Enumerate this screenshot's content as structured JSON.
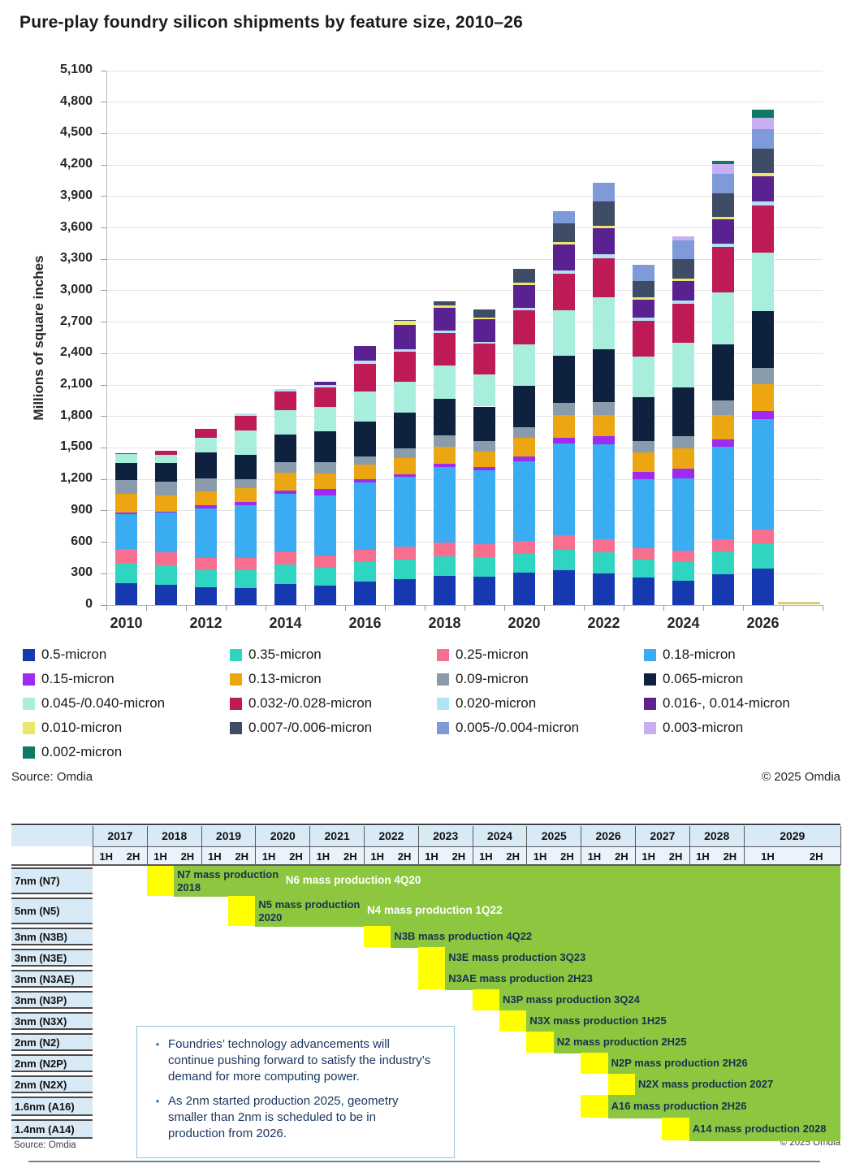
{
  "page": {
    "title": "Pure-play foundry silicon shipments by feature size, 2010–26",
    "chart_source": "Source: Omdia",
    "chart_copyright": "© 2025 Omdia",
    "table_source": "Source: Omdia",
    "table_copyright": "© 2025 Omdia"
  },
  "chart_data": {
    "type": "bar",
    "stacked": true,
    "title": "Pure-play foundry silicon shipments by feature size, 2010–26",
    "xlabel": "",
    "ylabel": "Millions of square inches",
    "ylim": [
      0,
      5100
    ],
    "ytick_step": 300,
    "grid": true,
    "legend_position": "bottom",
    "categories": [
      "2010",
      "2011",
      "2012",
      "2013",
      "2014",
      "2015",
      "2016",
      "2017",
      "2018",
      "2019",
      "2020",
      "2021",
      "2022",
      "2023",
      "2024",
      "2025",
      "2026"
    ],
    "xtick_labels_shown": [
      "2010",
      "2012",
      "2014",
      "2016",
      "2018",
      "2020",
      "2022",
      "2024",
      "2026"
    ],
    "series": [
      {
        "name": "0.5-micron",
        "color": "#1639b2",
        "values": [
          210,
          195,
          170,
          160,
          200,
          185,
          225,
          245,
          280,
          275,
          310,
          330,
          300,
          260,
          235,
          295,
          350
        ]
      },
      {
        "name": "0.35-micron",
        "color": "#2fd5c0",
        "values": [
          195,
          185,
          165,
          175,
          185,
          175,
          185,
          190,
          185,
          180,
          175,
          195,
          200,
          175,
          185,
          215,
          240
        ]
      },
      {
        "name": "0.25-micron",
        "color": "#f76e8e",
        "values": [
          130,
          120,
          115,
          115,
          125,
          115,
          120,
          120,
          135,
          130,
          130,
          145,
          130,
          105,
          100,
          115,
          130
        ]
      },
      {
        "name": "0.18-micron",
        "color": "#39acf2",
        "values": [
          335,
          380,
          470,
          500,
          555,
          575,
          640,
          670,
          720,
          700,
          755,
          870,
          905,
          660,
          690,
          885,
          1055
        ]
      },
      {
        "name": "0.15-micron",
        "color": "#9e2bef",
        "values": [
          15,
          15,
          35,
          35,
          30,
          55,
          30,
          25,
          30,
          30,
          45,
          60,
          75,
          70,
          90,
          75,
          80
        ]
      },
      {
        "name": "0.13-micron",
        "color": "#eba612",
        "values": [
          175,
          150,
          130,
          130,
          165,
          150,
          140,
          150,
          160,
          150,
          180,
          210,
          205,
          185,
          195,
          230,
          255
        ]
      },
      {
        "name": "0.09-micron",
        "color": "#8a9bac",
        "values": [
          130,
          130,
          125,
          90,
          105,
          110,
          80,
          95,
          110,
          100,
          105,
          120,
          120,
          110,
          115,
          135,
          150
        ]
      },
      {
        "name": "0.065-micron",
        "color": "#0e2240",
        "values": [
          170,
          185,
          250,
          230,
          260,
          290,
          330,
          340,
          350,
          330,
          390,
          450,
          505,
          420,
          465,
          535,
          545
        ]
      },
      {
        "name": "0.045-/0.040-micron",
        "color": "#a9eedc",
        "values": [
          80,
          75,
          135,
          230,
          235,
          235,
          285,
          300,
          320,
          310,
          395,
          430,
          500,
          385,
          430,
          500,
          555
        ]
      },
      {
        "name": "0.032-/0.028-micron",
        "color": "#be1b56",
        "values": [
          10,
          35,
          85,
          140,
          175,
          185,
          270,
          280,
          305,
          290,
          330,
          355,
          370,
          345,
          370,
          430,
          450
        ]
      },
      {
        "name": "0.020-micron",
        "color": "#b3e2f7",
        "values": [
          0,
          0,
          0,
          25,
          25,
          25,
          30,
          30,
          25,
          20,
          25,
          30,
          35,
          30,
          35,
          35,
          40
        ]
      },
      {
        "name": "0.016-, 0.014-micron",
        "color": "#5a2191",
        "values": [
          0,
          0,
          0,
          0,
          0,
          30,
          135,
          230,
          215,
          210,
          215,
          245,
          250,
          170,
          185,
          230,
          245
        ]
      },
      {
        "name": "0.010-micron",
        "color": "#eae66e",
        "values": [
          0,
          0,
          0,
          0,
          0,
          0,
          0,
          35,
          25,
          20,
          20,
          25,
          25,
          20,
          20,
          25,
          25
        ]
      },
      {
        "name": "0.007-/0.006-micron",
        "color": "#3e4c66",
        "values": [
          0,
          0,
          0,
          0,
          0,
          0,
          0,
          10,
          40,
          75,
          135,
          180,
          230,
          155,
          190,
          225,
          235
        ]
      },
      {
        "name": "0.005-/0.004-micron",
        "color": "#7e9ad9",
        "values": [
          0,
          0,
          0,
          0,
          0,
          0,
          0,
          0,
          0,
          0,
          0,
          115,
          180,
          160,
          175,
          185,
          185
        ]
      },
      {
        "name": "0.003-micron",
        "color": "#c8aff2",
        "values": [
          0,
          0,
          0,
          0,
          0,
          0,
          0,
          0,
          0,
          0,
          0,
          0,
          0,
          0,
          40,
          90,
          110
        ]
      },
      {
        "name": "0.002-micron",
        "color": "#0d7a64",
        "values": [
          0,
          0,
          0,
          0,
          0,
          0,
          0,
          0,
          0,
          0,
          0,
          0,
          0,
          0,
          0,
          35,
          80
        ]
      }
    ],
    "partial_sliver_after_2026": {
      "color": "#d3c35c",
      "note": "thin unlabeled sliver at baseline right of 2026"
    }
  },
  "timeline": {
    "years": [
      "2017",
      "2018",
      "2019",
      "2020",
      "2021",
      "2022",
      "2023",
      "2024",
      "2025",
      "2026",
      "2027",
      "2028",
      "2029"
    ],
    "half_labels": [
      "1H",
      "2H"
    ],
    "green": "#8dc63f",
    "yellow": "#ffff00",
    "rows": [
      {
        "label": "7nm (N7)",
        "yellow_h": 2,
        "yellow_rowspan": 1,
        "green_start_h": 3,
        "notes": [
          {
            "text": "N7 mass production 2018",
            "h": 3,
            "style": "dark",
            "wrap_width": 140
          },
          {
            "text": "N6 mass production 4Q20",
            "h": 7,
            "style": "white"
          }
        ]
      },
      {
        "label": "5nm (N5)",
        "yellow_h": 5,
        "yellow_rowspan": 1,
        "green_start_h": 6,
        "notes": [
          {
            "text": "N5 mass production 2020",
            "h": 6,
            "style": "dark",
            "wrap_width": 140
          },
          {
            "text": "N4 mass production 1Q22",
            "h": 10,
            "style": "white"
          }
        ]
      },
      {
        "label": "3nm (N3B)",
        "yellow_h": 10,
        "yellow_rowspan": 1,
        "green_start_h": 11,
        "notes": [
          {
            "text": "N3B mass production 4Q22",
            "h": 11,
            "style": "dark"
          }
        ]
      },
      {
        "label": "3nm (N3E)",
        "yellow_h": 12,
        "yellow_rowspan": 2,
        "green_start_h": 13,
        "notes": [
          {
            "text": "N3E mass production 3Q23",
            "h": 13,
            "style": "dark"
          }
        ]
      },
      {
        "label": "3nm (N3AE)",
        "yellow_h": null,
        "yellow_rowspan": 0,
        "green_start_h": 13,
        "notes": [
          {
            "text": "N3AE mass production 2H23",
            "h": 13,
            "style": "dark"
          }
        ]
      },
      {
        "label": "3nm (N3P)",
        "yellow_h": 14,
        "yellow_rowspan": 1,
        "green_start_h": 15,
        "notes": [
          {
            "text": "N3P mass production 3Q24",
            "h": 15,
            "style": "dark"
          }
        ]
      },
      {
        "label": "3nm (N3X)",
        "yellow_h": 15,
        "yellow_rowspan": 1,
        "green_start_h": 16,
        "notes": [
          {
            "text": "N3X mass production 1H25",
            "h": 16,
            "style": "dark"
          }
        ]
      },
      {
        "label": "2nm (N2)",
        "yellow_h": 16,
        "yellow_rowspan": 1,
        "green_start_h": 17,
        "notes": [
          {
            "text": "N2 mass production 2H25",
            "h": 17,
            "style": "dark"
          }
        ]
      },
      {
        "label": "2nm (N2P)",
        "yellow_h": 18,
        "yellow_rowspan": 1,
        "green_start_h": 19,
        "notes": [
          {
            "text": "N2P mass production 2H26",
            "h": 19,
            "style": "dark"
          }
        ]
      },
      {
        "label": "2nm (N2X)",
        "yellow_h": 19,
        "yellow_rowspan": 1,
        "green_start_h": 20,
        "notes": [
          {
            "text": "N2X mass production 2027",
            "h": 20,
            "style": "dark"
          }
        ]
      },
      {
        "label": "1.6nm (A16)",
        "yellow_h": 18,
        "yellow_rowspan": 1,
        "green_start_h": 19,
        "notes": [
          {
            "text": "A16 mass production 2H26",
            "h": 19,
            "style": "dark"
          }
        ]
      },
      {
        "label": "1.4nm (A14)",
        "yellow_h": 21,
        "yellow_rowspan": 1,
        "green_start_h": 22,
        "notes": [
          {
            "text": "A14 mass production 2028",
            "h": 22,
            "style": "dark"
          }
        ]
      }
    ],
    "callout": {
      "bullets": [
        "Foundries’ technology advancements will continue pushing forward to satisfy the industry’s demand for more computing power.",
        "As 2nm started production 2025, geometry smaller than 2nm is scheduled to be in production from 2026."
      ]
    }
  }
}
